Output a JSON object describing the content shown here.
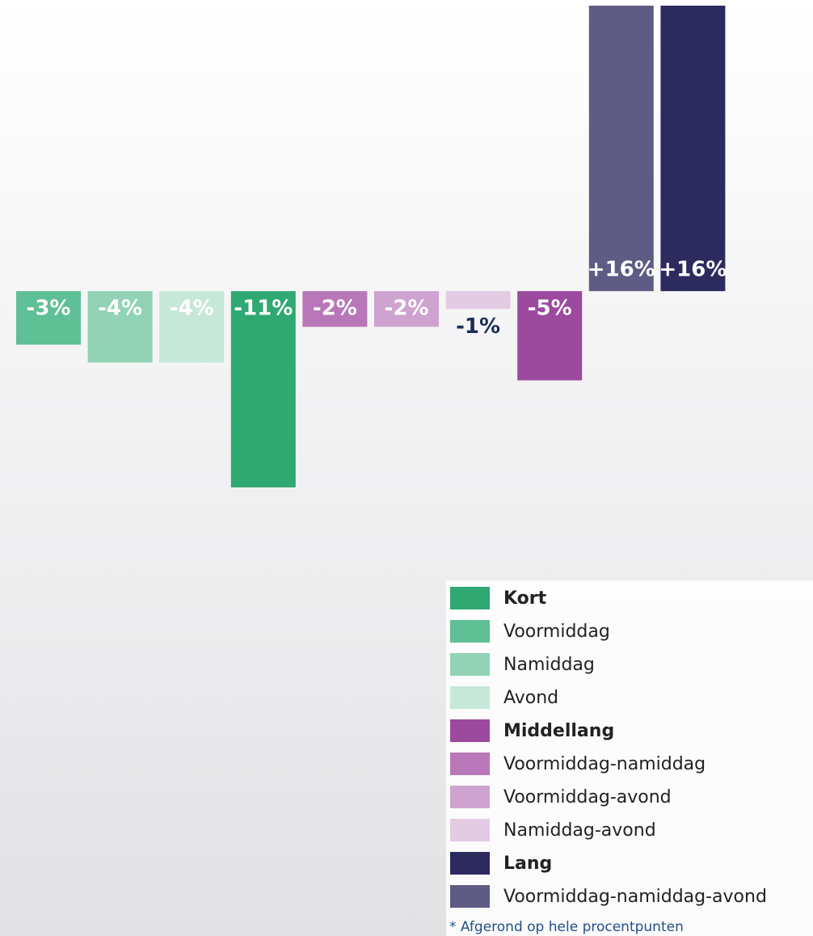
{
  "chart_data": {
    "type": "bar",
    "categories": [
      null,
      null,
      null,
      null,
      null,
      null,
      null,
      null,
      null,
      null
    ],
    "values": [
      -3,
      -4,
      -4,
      -11,
      -2,
      -2,
      -1,
      -5,
      16,
      16
    ],
    "value_labels": [
      "-3%",
      "-4%",
      "-4%",
      "-11%",
      "-2%",
      "-2%",
      "-1%",
      "-5%",
      "+16%",
      "+16%"
    ],
    "colors": [
      "#5fbf95",
      "#92d3b6",
      "#c6e8d8",
      "#2fa872",
      "#b877b8",
      "#cea3cf",
      "#e3cbe4",
      "#9b4a9e",
      "#5e5b85",
      "#2d2a5e"
    ],
    "legend": [
      {
        "name": "Kort",
        "color": "#2fa872",
        "bold": true
      },
      {
        "name": "Voormiddag",
        "color": "#5fbf95",
        "bold": false
      },
      {
        "name": "Namiddag",
        "color": "#92d3b6",
        "bold": false
      },
      {
        "name": "Avond",
        "color": "#c6e8d8",
        "bold": false
      },
      {
        "name": "Middellang",
        "color": "#9b4a9e",
        "bold": true
      },
      {
        "name": "Voormiddag-namiddag",
        "color": "#b877b8",
        "bold": false
      },
      {
        "name": "Voormiddag-avond",
        "color": "#cea3cf",
        "bold": false
      },
      {
        "name": "Namiddag-avond",
        "color": "#e3cbe4",
        "bold": false
      },
      {
        "name": "Lang",
        "color": "#2d2a5e",
        "bold": true
      },
      {
        "name": "Voormiddag-namiddag-avond",
        "color": "#5e5b85",
        "bold": false
      }
    ],
    "footnote": "* Afgerond op hele procentpunten"
  }
}
